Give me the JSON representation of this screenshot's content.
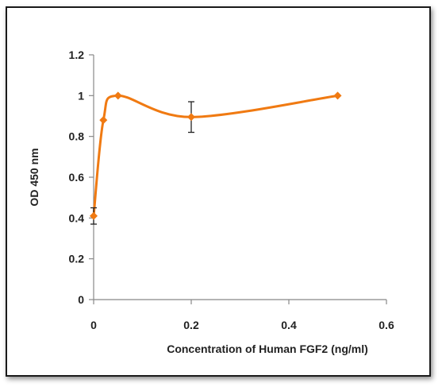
{
  "chart_data": {
    "type": "line",
    "title": "",
    "xlabel": "Concentration of  Human FGF2 (ng/ml)",
    "ylabel": "OD 450 nm",
    "xlim": [
      0,
      0.6
    ],
    "ylim": [
      0,
      1.2
    ],
    "x_ticks": [
      0,
      0.2,
      0.4,
      0.6
    ],
    "y_ticks": [
      0,
      0.2,
      0.4,
      0.6,
      0.8,
      1,
      1.2
    ],
    "x_tick_labels": [
      "0",
      "0.2",
      "0.4",
      "0.6"
    ],
    "y_tick_labels": [
      "0",
      "0.2",
      "0.4",
      "0.6",
      "0.8",
      "1",
      "1.2"
    ],
    "grid": false,
    "legend": "none",
    "smooth": true,
    "series": [
      {
        "x": [
          0,
          0.02,
          0.05,
          0.2,
          0.5
        ],
        "y": [
          0.41,
          0.88,
          1.0,
          0.895,
          1.0
        ],
        "error": [
          0.04,
          null,
          null,
          0.075,
          null
        ],
        "color": "#f07a12",
        "marker": "diamond"
      }
    ],
    "error_bar_color": "#222222"
  }
}
